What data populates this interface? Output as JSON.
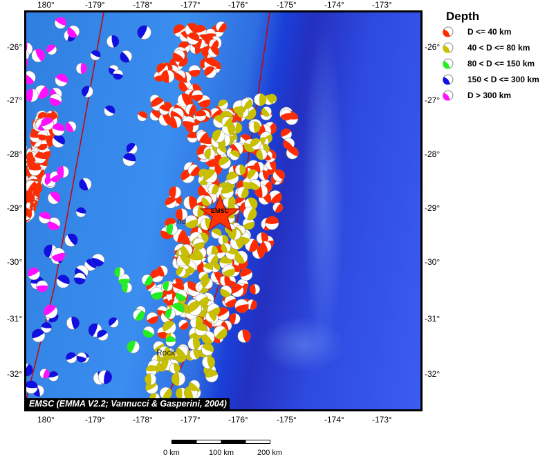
{
  "legend": {
    "title": "Depth",
    "items": [
      {
        "label": "D <= 40 km",
        "color": "#ff2a00"
      },
      {
        "label": "40 < D <= 80 km",
        "color": "#c8c000"
      },
      {
        "label": "80 < D <= 150 km",
        "color": "#22ee22"
      },
      {
        "label": "150 < D <= 300 km",
        "color": "#1010e0"
      },
      {
        "label": "D > 300 km",
        "color": "#ff10ff"
      }
    ]
  },
  "x_ticks": [
    "180°",
    "-179°",
    "-178°",
    "-177°",
    "-176°",
    "-175°",
    "-174°",
    "-173°"
  ],
  "y_ticks": [
    "-26°",
    "-27°",
    "-28°",
    "-29°",
    "-30°",
    "-31°",
    "-32°"
  ],
  "epicenter_label": "EMSC",
  "place_labels": [
    "nd",
    "Rock"
  ],
  "credit": "EMSC (EMMA V2.2; Vannucci & Gasperini, 2004)",
  "scale": {
    "labels": [
      "0 km",
      "100 km",
      "200 km"
    ]
  },
  "colors": {
    "plate_boundary": "#cc0000",
    "epicenter": "#ff3300"
  }
}
